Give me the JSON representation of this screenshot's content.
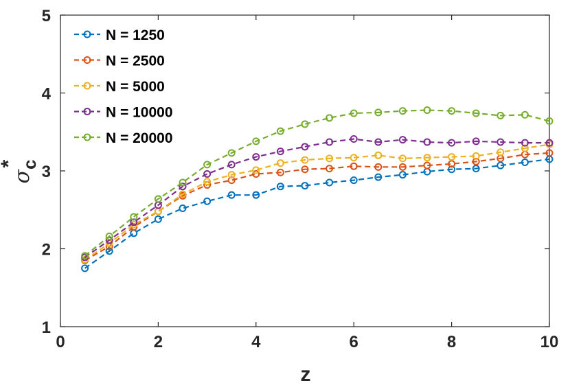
{
  "chart_data": {
    "type": "line",
    "xlabel": "z",
    "ylabel": {
      "symbol": "σ",
      "subscript": "c",
      "superscript": "*"
    },
    "xlim": [
      0,
      10
    ],
    "ylim": [
      1,
      5
    ],
    "xticks": [
      0,
      2,
      4,
      6,
      8,
      10
    ],
    "yticks": [
      1,
      2,
      3,
      4,
      5
    ],
    "grid": false,
    "legend_position": "top-left",
    "line_style": "dashed",
    "marker": "open-circle",
    "x": [
      0.5,
      1,
      1.5,
      2,
      2.5,
      3,
      3.5,
      4,
      4.5,
      5,
      5.5,
      6,
      6.5,
      7,
      7.5,
      8,
      8.5,
      9,
      9.5,
      10
    ],
    "series": [
      {
        "name": "N = 1250",
        "color": "#0072BD",
        "values": [
          1.75,
          1.97,
          2.2,
          2.38,
          2.52,
          2.61,
          2.69,
          2.69,
          2.8,
          2.81,
          2.85,
          2.88,
          2.92,
          2.95,
          2.99,
          3.02,
          3.03,
          3.07,
          3.11,
          3.15
        ]
      },
      {
        "name": "N = 2500",
        "color": "#D95319",
        "values": [
          1.85,
          2.03,
          2.28,
          2.48,
          2.68,
          2.82,
          2.88,
          2.96,
          2.98,
          3.02,
          3.03,
          3.06,
          3.05,
          3.05,
          3.07,
          3.09,
          3.12,
          3.16,
          3.21,
          3.23
        ]
      },
      {
        "name": "N = 5000",
        "color": "#EDB120",
        "values": [
          1.86,
          2.07,
          2.31,
          2.48,
          2.7,
          2.86,
          2.95,
          3.01,
          3.1,
          3.14,
          3.16,
          3.17,
          3.2,
          3.16,
          3.17,
          3.18,
          3.19,
          3.24,
          3.29,
          3.34
        ]
      },
      {
        "name": "N = 10000",
        "color": "#7E2F8E",
        "values": [
          1.89,
          2.11,
          2.34,
          2.56,
          2.8,
          2.96,
          3.08,
          3.18,
          3.25,
          3.31,
          3.37,
          3.41,
          3.37,
          3.4,
          3.37,
          3.36,
          3.38,
          3.37,
          3.36,
          3.36
        ]
      },
      {
        "name": "N = 20000",
        "color": "#77AC30",
        "values": [
          1.91,
          2.16,
          2.41,
          2.64,
          2.85,
          3.08,
          3.23,
          3.38,
          3.51,
          3.6,
          3.68,
          3.74,
          3.75,
          3.77,
          3.78,
          3.77,
          3.74,
          3.71,
          3.72,
          3.64
        ]
      }
    ]
  }
}
